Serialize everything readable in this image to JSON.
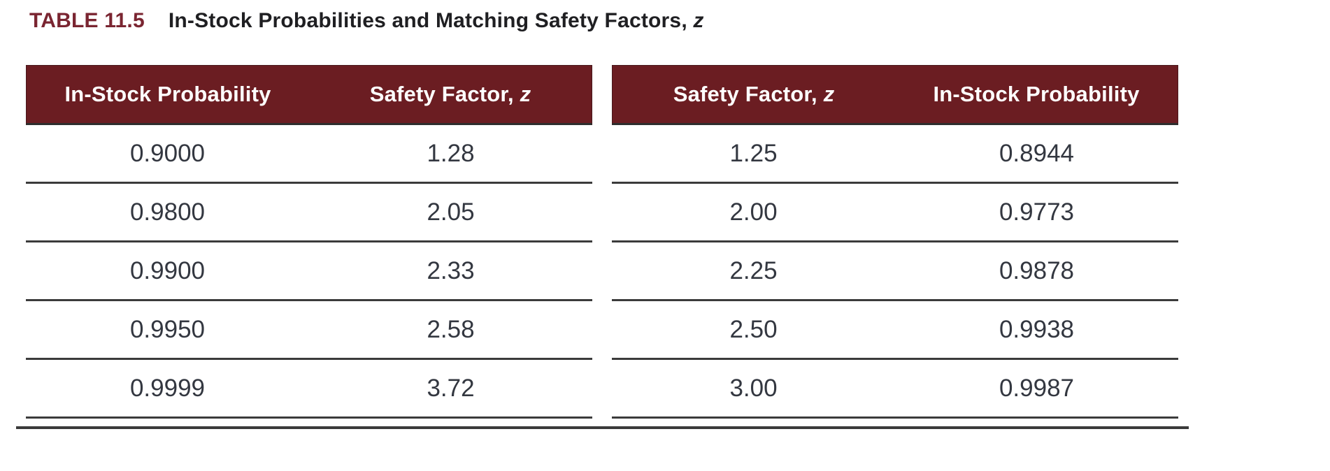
{
  "title": {
    "label": "TABLE 11.5",
    "text": "In-Stock Probabilities and Matching Safety Factors, ",
    "italic_suffix": "z"
  },
  "colors": {
    "header_bg": "#6b1d22",
    "header_text": "#ffffff",
    "title_label": "#7a2531",
    "title_text": "#1f1f22",
    "cell_text": "#333740",
    "rule": "#3b3b3b"
  },
  "left_table": {
    "headers": [
      {
        "text": "In-Stock Probability",
        "italic": ""
      },
      {
        "text": "Safety Factor, ",
        "italic": "z"
      }
    ],
    "rows": [
      [
        "0.9000",
        "1.28"
      ],
      [
        "0.9800",
        "2.05"
      ],
      [
        "0.9900",
        "2.33"
      ],
      [
        "0.9950",
        "2.58"
      ],
      [
        "0.9999",
        "3.72"
      ]
    ]
  },
  "right_table": {
    "headers": [
      {
        "text": "Safety Factor, ",
        "italic": "z"
      },
      {
        "text": "In-Stock Probability",
        "italic": ""
      }
    ],
    "rows": [
      [
        "1.25",
        "0.8944"
      ],
      [
        "2.00",
        "0.9773"
      ],
      [
        "2.25",
        "0.9878"
      ],
      [
        "2.50",
        "0.9938"
      ],
      [
        "3.00",
        "0.9987"
      ]
    ]
  },
  "chart_data": {
    "type": "table",
    "title": "TABLE 11.5  In-Stock Probabilities and Matching Safety Factors, z",
    "tables": [
      {
        "columns": [
          "In-Stock Probability",
          "Safety Factor, z"
        ],
        "rows": [
          [
            "0.9000",
            "1.28"
          ],
          [
            "0.9800",
            "2.05"
          ],
          [
            "0.9900",
            "2.33"
          ],
          [
            "0.9950",
            "2.58"
          ],
          [
            "0.9999",
            "3.72"
          ]
        ]
      },
      {
        "columns": [
          "Safety Factor, z",
          "In-Stock Probability"
        ],
        "rows": [
          [
            "1.25",
            "0.8944"
          ],
          [
            "2.00",
            "0.9773"
          ],
          [
            "2.25",
            "0.9878"
          ],
          [
            "2.50",
            "0.9938"
          ],
          [
            "3.00",
            "0.9987"
          ]
        ]
      }
    ]
  }
}
